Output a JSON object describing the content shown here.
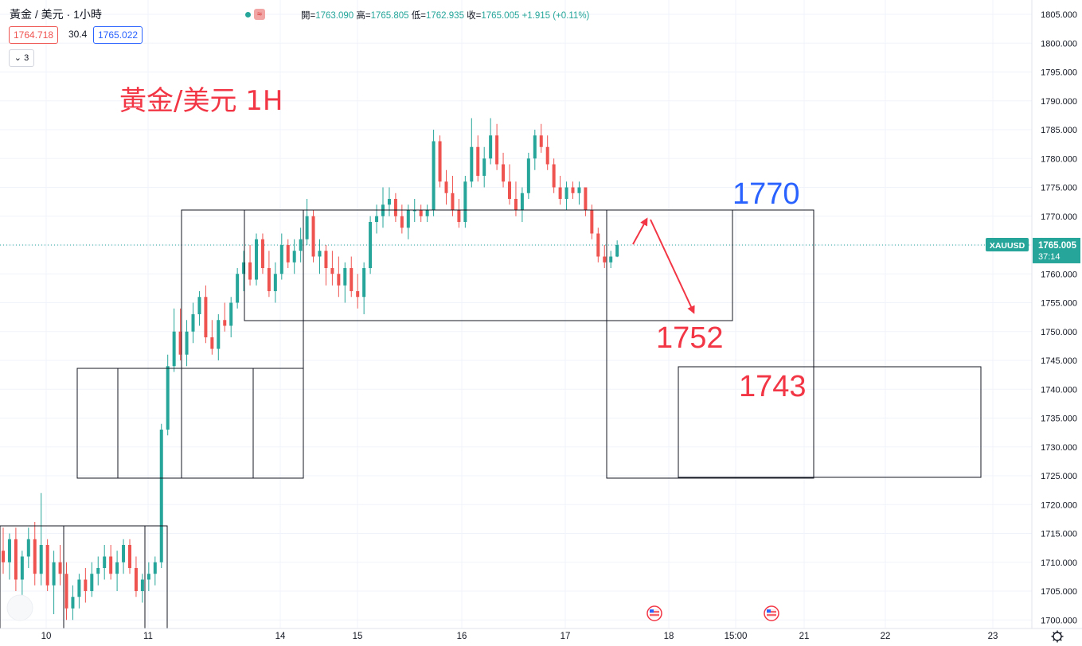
{
  "header": {
    "symbol": "黃金 / 美元 · 1小時",
    "wave_icon": "≈",
    "open_label": "開=",
    "open": "1763.090",
    "high_label": "高=",
    "high": "1765.805",
    "low_label": "低=",
    "low": "1762.935",
    "close_label": "收=",
    "close": "1765.005",
    "change": "+1.915 (+0.11%)",
    "sell_price": "1764.718",
    "spread": "30.4",
    "buy_price": "1765.022",
    "indicators_count": "3"
  },
  "colors": {
    "up": "#26a69a",
    "down": "#ef5350",
    "annotation_red": "#f23645",
    "annotation_blue": "#2962ff",
    "axis_tag": "#26a69a"
  },
  "annotations": {
    "title": "黃金/美元 1H",
    "level_1770": "1770",
    "level_1752": "1752",
    "level_1743": "1743"
  },
  "chart_data": {
    "type": "candlestick",
    "symbol_tag": "XAUUSD",
    "last_price": "1765.005",
    "countdown": "37:14",
    "last_price_value": 1765.005,
    "ylim": [
      1699,
      1806
    ],
    "y_ticks": [
      "1805.000",
      "1800.000",
      "1795.000",
      "1790.000",
      "1785.000",
      "1780.000",
      "1775.000",
      "1770.000",
      "1765.000",
      "1760.000",
      "1755.000",
      "1750.000",
      "1745.000",
      "1740.000",
      "1735.000",
      "1730.000",
      "1725.000",
      "1720.000",
      "1715.000",
      "1710.000",
      "1705.000",
      "1700.000"
    ],
    "x_ticks": [
      "10",
      "11",
      "14",
      "15",
      "16",
      "17",
      "18",
      "15:00",
      "21",
      "22",
      "23"
    ],
    "grid": true,
    "candles": [
      [
        1712,
        1716,
        1708,
        1710
      ],
      [
        1710,
        1715,
        1707,
        1714
      ],
      [
        1714,
        1716,
        1705,
        1707
      ],
      [
        1707,
        1712,
        1704,
        1711
      ],
      [
        1711,
        1716,
        1709,
        1714
      ],
      [
        1714,
        1717,
        1706,
        1708
      ],
      [
        1708,
        1722,
        1706,
        1713
      ],
      [
        1713,
        1714,
        1705,
        1706
      ],
      [
        1706,
        1712,
        1701,
        1710
      ],
      [
        1710,
        1713,
        1706,
        1708
      ],
      [
        1708,
        1710,
        1700,
        1702
      ],
      [
        1702,
        1706,
        1700,
        1704
      ],
      [
        1704,
        1708,
        1702,
        1707
      ],
      [
        1707,
        1709,
        1703,
        1705
      ],
      [
        1705,
        1710,
        1704,
        1708
      ],
      [
        1708,
        1711,
        1706,
        1709
      ],
      [
        1709,
        1713,
        1707,
        1711
      ],
      [
        1711,
        1713,
        1707,
        1708
      ],
      [
        1708,
        1712,
        1705,
        1710
      ],
      [
        1710,
        1714,
        1708,
        1713
      ],
      [
        1713,
        1714,
        1708,
        1709
      ],
      [
        1709,
        1711,
        1704,
        1705
      ],
      [
        1705,
        1708,
        1703,
        1707
      ],
      [
        1707,
        1710,
        1705,
        1708
      ],
      [
        1708,
        1711,
        1706,
        1710
      ],
      [
        1710,
        1734,
        1709,
        1733
      ],
      [
        1733,
        1746,
        1732,
        1744
      ],
      [
        1744,
        1754,
        1743,
        1750
      ],
      [
        1750,
        1754,
        1745,
        1746
      ],
      [
        1746,
        1752,
        1744,
        1750
      ],
      [
        1750,
        1755,
        1748,
        1753
      ],
      [
        1753,
        1757,
        1751,
        1756
      ],
      [
        1756,
        1758,
        1748,
        1749
      ],
      [
        1749,
        1752,
        1746,
        1747
      ],
      [
        1747,
        1753,
        1745,
        1752
      ],
      [
        1752,
        1755,
        1750,
        1751
      ],
      [
        1751,
        1756,
        1749,
        1755
      ],
      [
        1755,
        1761,
        1754,
        1760
      ],
      [
        1760,
        1764,
        1757,
        1762
      ],
      [
        1762,
        1765,
        1758,
        1759
      ],
      [
        1759,
        1767,
        1758,
        1766
      ],
      [
        1766,
        1767,
        1760,
        1761
      ],
      [
        1761,
        1764,
        1756,
        1757
      ],
      [
        1757,
        1762,
        1755,
        1760
      ],
      [
        1760,
        1767,
        1759,
        1765
      ],
      [
        1765,
        1766,
        1761,
        1762
      ],
      [
        1762,
        1766,
        1760,
        1764
      ],
      [
        1764,
        1768,
        1762,
        1766
      ],
      [
        1766,
        1773,
        1765,
        1770
      ],
      [
        1770,
        1771,
        1762,
        1763
      ],
      [
        1763,
        1766,
        1760,
        1764
      ],
      [
        1764,
        1765,
        1758,
        1761
      ],
      [
        1761,
        1764,
        1758,
        1760
      ],
      [
        1760,
        1763,
        1756,
        1758
      ],
      [
        1758,
        1762,
        1755,
        1761
      ],
      [
        1761,
        1763,
        1756,
        1757
      ],
      [
        1757,
        1760,
        1754,
        1756
      ],
      [
        1756,
        1762,
        1753,
        1761
      ],
      [
        1761,
        1770,
        1760,
        1769
      ],
      [
        1769,
        1772,
        1767,
        1770
      ],
      [
        1770,
        1775,
        1768,
        1772
      ],
      [
        1772,
        1775,
        1770,
        1773
      ],
      [
        1773,
        1774,
        1769,
        1770
      ],
      [
        1770,
        1772,
        1767,
        1768
      ],
      [
        1768,
        1772,
        1766,
        1771
      ],
      [
        1771,
        1773,
        1769,
        1771
      ],
      [
        1771,
        1772,
        1769,
        1770
      ],
      [
        1770,
        1772,
        1769,
        1771
      ],
      [
        1771,
        1785,
        1770,
        1783
      ],
      [
        1783,
        1784,
        1775,
        1776
      ],
      [
        1776,
        1778,
        1772,
        1774
      ],
      [
        1774,
        1777,
        1770,
        1771
      ],
      [
        1771,
        1773,
        1768,
        1769
      ],
      [
        1769,
        1777,
        1768,
        1776
      ],
      [
        1776,
        1787,
        1775,
        1782
      ],
      [
        1782,
        1784,
        1776,
        1777
      ],
      [
        1777,
        1782,
        1775,
        1780
      ],
      [
        1780,
        1787,
        1779,
        1784
      ],
      [
        1784,
        1786,
        1778,
        1779
      ],
      [
        1779,
        1781,
        1775,
        1776
      ],
      [
        1776,
        1779,
        1772,
        1773
      ],
      [
        1773,
        1776,
        1770,
        1771
      ],
      [
        1771,
        1775,
        1769,
        1774
      ],
      [
        1774,
        1781,
        1773,
        1780
      ],
      [
        1780,
        1785,
        1778,
        1784
      ],
      [
        1784,
        1786,
        1781,
        1782
      ],
      [
        1782,
        1784,
        1778,
        1779
      ],
      [
        1779,
        1780,
        1774,
        1775
      ],
      [
        1775,
        1777,
        1772,
        1773
      ],
      [
        1773,
        1776,
        1771,
        1775
      ],
      [
        1775,
        1776,
        1773,
        1774
      ],
      [
        1774,
        1776,
        1772,
        1775
      ],
      [
        1775,
        1775,
        1770,
        1771
      ],
      [
        1771,
        1772,
        1766,
        1767
      ],
      [
        1767,
        1768,
        1762,
        1763
      ],
      [
        1763,
        1765,
        1761,
        1762
      ],
      [
        1762,
        1764,
        1761,
        1763
      ],
      [
        1763,
        1765.8,
        1762.9,
        1765.005
      ]
    ]
  }
}
